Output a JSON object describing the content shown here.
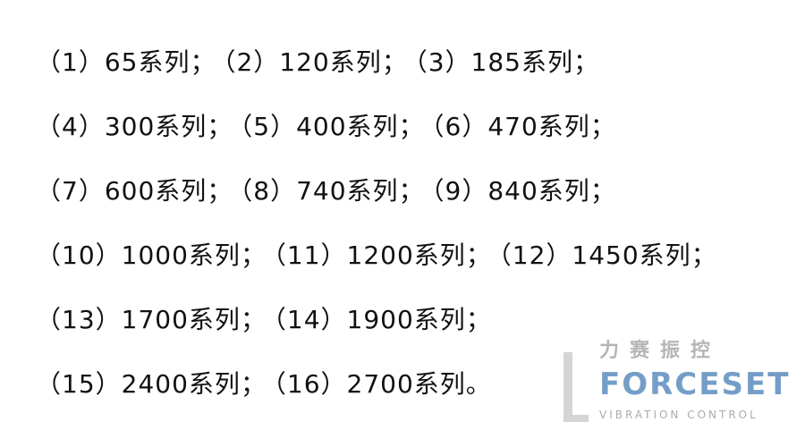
{
  "lines": [
    [
      "（1）65系列；",
      "（2）120系列；",
      "（3）185系列；"
    ],
    [
      "（4）300系列；",
      "（5）400系列；",
      "（6）470系列；"
    ],
    [
      "（7）600系列；",
      "（8）740系列；",
      "（9）840系列；"
    ],
    [
      "（10）1000系列；",
      "（11）1200系列；",
      "（12）1450系列；"
    ],
    [
      "（13）1700系列；",
      "（14）1900系列；"
    ],
    [
      "（15）2400系列；",
      "（16）2700系列。"
    ]
  ],
  "watermark": {
    "cn": "力赛振控",
    "brand": "FORCESET",
    "sub": "VIBRATION CONTROL",
    "colors": {
      "brand": "#467db4",
      "gray": "#969696"
    }
  }
}
